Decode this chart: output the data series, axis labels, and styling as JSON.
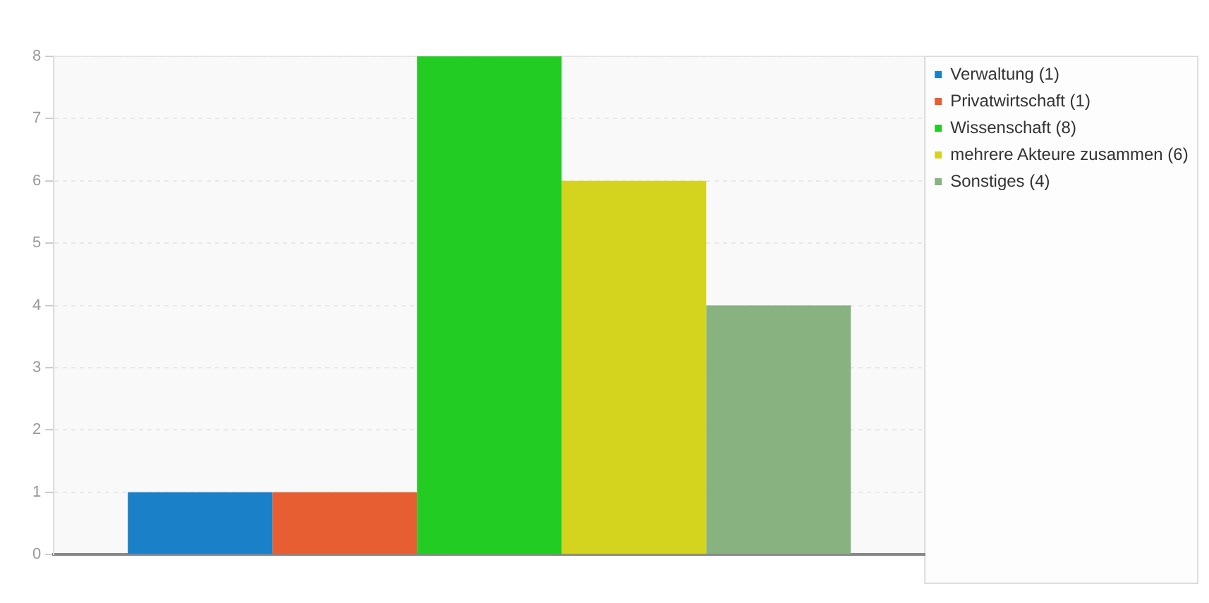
{
  "chart_data": {
    "type": "bar",
    "categories": [
      null
    ],
    "series": [
      {
        "name": "Verwaltung (1)",
        "color": "#1a80c8",
        "values": [
          1
        ]
      },
      {
        "name": "Privatwirtschaft (1)",
        "color": "#e65e32",
        "values": [
          1
        ]
      },
      {
        "name": "Wissenschaft (8)",
        "color": "#22cc22",
        "values": [
          8
        ]
      },
      {
        "name": "mehrere Akteure zusammen (6)",
        "color": "#d4d41e",
        "values": [
          6
        ]
      },
      {
        "name": "Sonstiges (4)",
        "color": "#88b280",
        "values": [
          4
        ]
      }
    ],
    "ylim": [
      0,
      8
    ],
    "yticks": [
      0,
      1,
      2,
      3,
      4,
      5,
      6,
      7,
      8
    ],
    "grid": "y",
    "legend": "top right"
  }
}
